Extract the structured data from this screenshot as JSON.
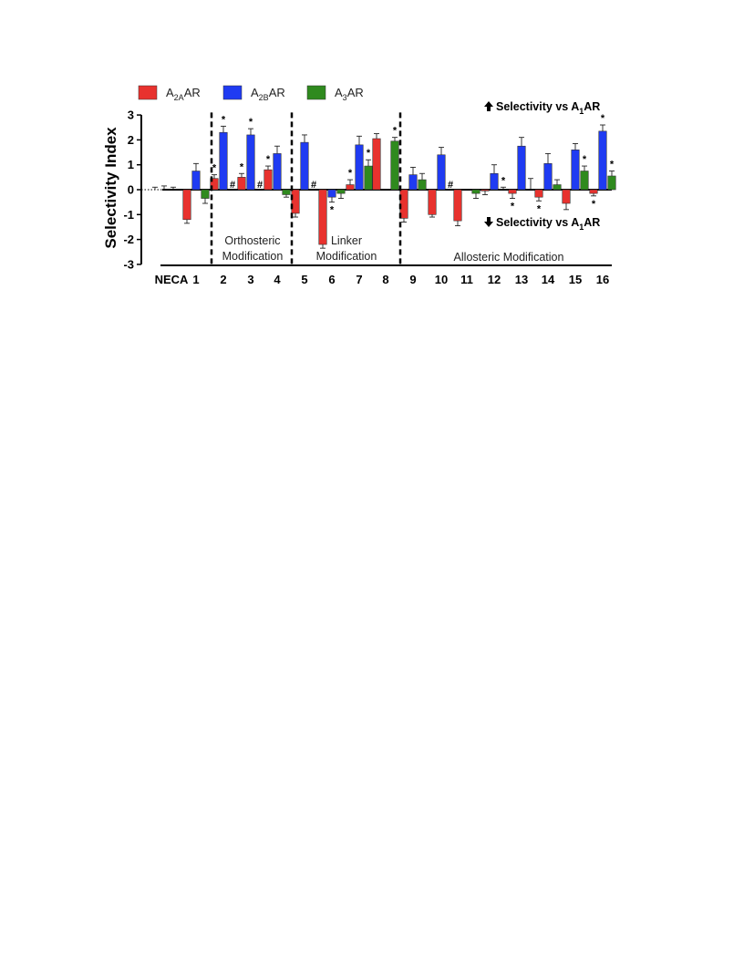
{
  "chart_data": {
    "type": "bar",
    "ylabel": "Selectivity Index",
    "ylim": [
      -3,
      3
    ],
    "yticks": [
      "-3",
      "-2",
      "-1",
      "0",
      "1",
      "2",
      "3"
    ],
    "categories": [
      "NECA",
      "1",
      "2",
      "3",
      "4",
      "5",
      "6",
      "7",
      "8",
      "9",
      "10",
      "11",
      "12",
      "13",
      "14",
      "15",
      "16"
    ],
    "colors": {
      "A2AAR": "#e8322e",
      "A2BAR": "#1f3bf2",
      "A3AR": "#2f8a1e"
    },
    "legend": [
      {
        "key": "A2AAR",
        "base": "A",
        "sub": "2A",
        "tail": "AR"
      },
      {
        "key": "A2BAR",
        "base": "A",
        "sub": "2B",
        "tail": "AR"
      },
      {
        "key": "A3AR",
        "base": "A",
        "sub": "3",
        "tail": "AR"
      }
    ],
    "series": [
      {
        "key": "A2AAR",
        "values": [
          0,
          -1.2,
          0.45,
          0.5,
          0.8,
          -0.95,
          -2.2,
          0.2,
          2.05,
          -1.15,
          -1.0,
          -1.25,
          -0.05,
          -0.15,
          -0.3,
          -0.55,
          -0.15
        ],
        "errors": [
          0.1,
          0.15,
          0.15,
          0.15,
          0.15,
          0.15,
          0.15,
          0.2,
          0.2,
          0.15,
          0.1,
          0.2,
          0.15,
          0.2,
          0.15,
          0.25,
          0.1
        ],
        "marks": [
          "",
          "",
          "*",
          "*",
          "*",
          "",
          "",
          "*",
          "",
          "",
          "",
          "",
          "",
          "*",
          "*",
          "",
          "*"
        ]
      },
      {
        "key": "A2BAR",
        "values": [
          0,
          0.75,
          2.3,
          2.2,
          1.45,
          1.9,
          -0.3,
          1.8,
          0,
          0.6,
          1.4,
          0,
          0.65,
          1.75,
          1.05,
          1.6,
          2.35
        ],
        "errors": [
          0.15,
          0.3,
          0.25,
          0.25,
          0.3,
          0.3,
          0.2,
          0.35,
          0,
          0.3,
          0.3,
          0,
          0.35,
          0.35,
          0.4,
          0.25,
          0.25
        ],
        "marks": [
          "",
          "",
          "*",
          "*",
          "",
          "",
          "*",
          "",
          "",
          "",
          "",
          "",
          "",
          "",
          "",
          "",
          "*"
        ]
      },
      {
        "key": "A3AR",
        "values": [
          0,
          -0.35,
          0,
          0,
          -0.2,
          0,
          -0.15,
          0.95,
          1.95,
          0.4,
          0,
          -0.15,
          0,
          0,
          0.2,
          0.75,
          0.55
        ],
        "errors": [
          0.1,
          0.2,
          0,
          0,
          0.1,
          0,
          0.2,
          0.25,
          0.15,
          0.25,
          0,
          0.2,
          0.1,
          0.45,
          0.2,
          0.2,
          0.2
        ],
        "marks": [
          "",
          "",
          "#",
          "#",
          "",
          "#",
          "",
          "*",
          "*",
          "",
          "#",
          "",
          "*",
          "",
          "",
          "*",
          "*"
        ]
      }
    ],
    "annotations": {
      "up": {
        "text": "Selectivity vs A",
        "sub": "1",
        "tail": "AR"
      },
      "down": {
        "text": "Selectivity vs A",
        "sub": "1",
        "tail": "AR"
      },
      "regions": [
        {
          "lines": [
            "Orthosteric",
            "Modification"
          ]
        },
        {
          "lines": [
            "Linker",
            "Modification"
          ]
        },
        {
          "lines": [
            "Allosteric Modification"
          ]
        }
      ]
    },
    "marks_legend": "",
    "grid": false
  }
}
